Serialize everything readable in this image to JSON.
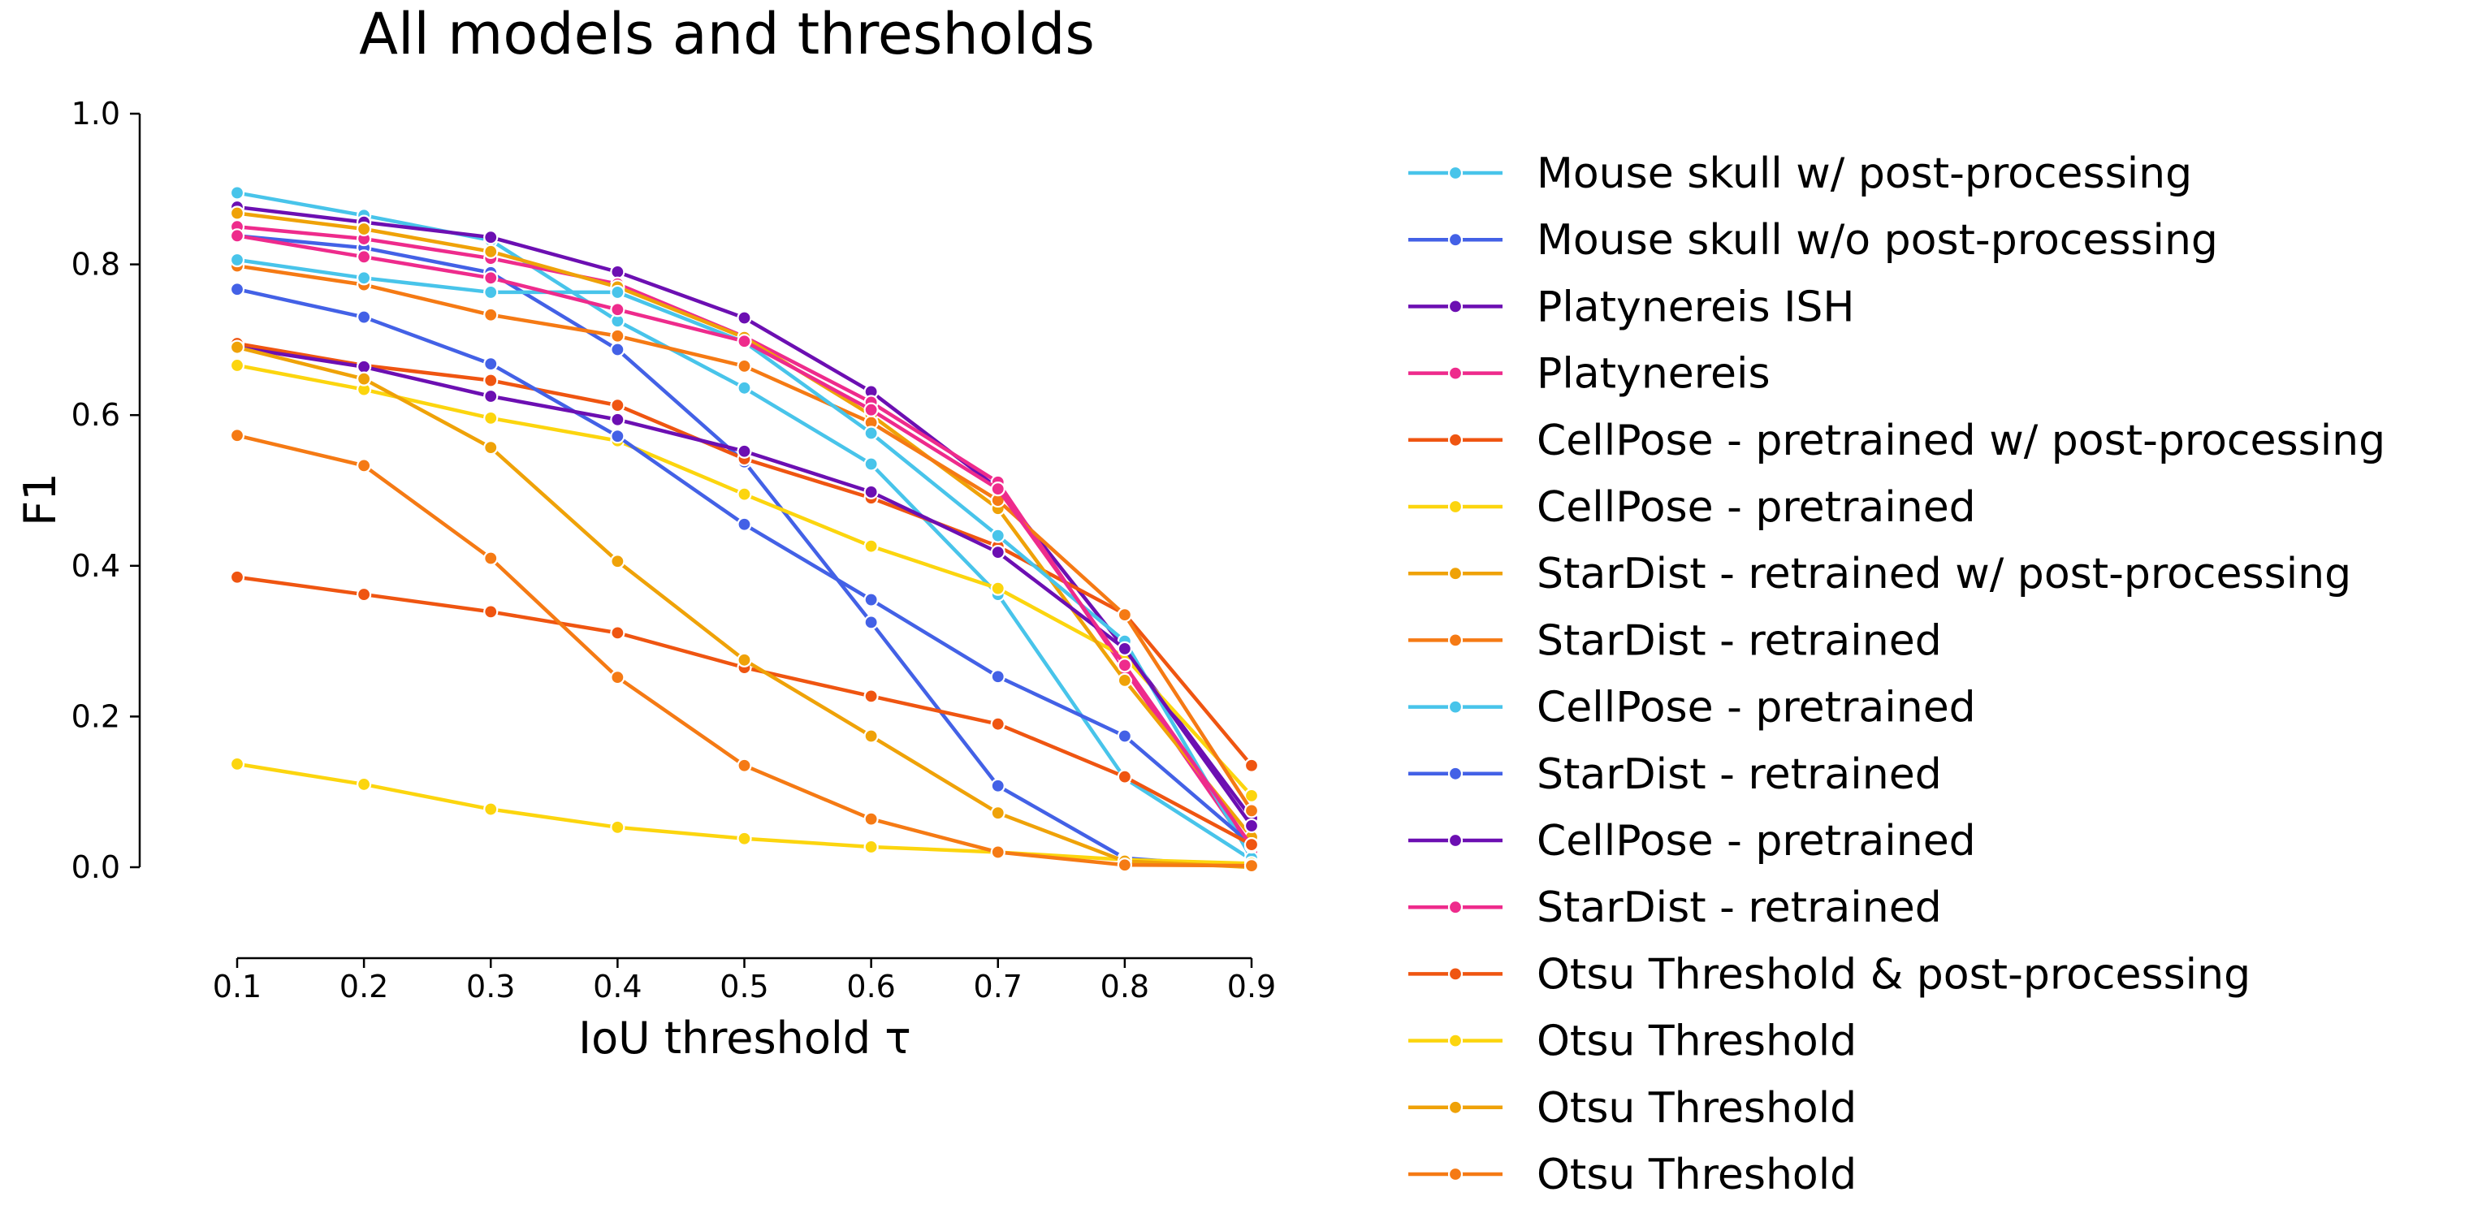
{
  "chart_data": {
    "type": "line",
    "title": "All models and thresholds",
    "xlabel": "IoU threshold τ",
    "ylabel": "F1",
    "x": [
      0.1,
      0.2,
      0.3,
      0.4,
      0.5,
      0.6,
      0.7,
      0.8,
      0.9
    ],
    "x_tick_labels": [
      "0.1",
      "0.2",
      "0.3",
      "0.4",
      "0.5",
      "0.6",
      "0.7",
      "0.8",
      "0.9"
    ],
    "y_ticks": [
      0.0,
      0.2,
      0.4,
      0.6,
      0.8,
      1.0
    ],
    "y_tick_labels": [
      "0.0",
      "0.2",
      "0.4",
      "0.6",
      "0.8",
      "1.0"
    ],
    "xlim": [
      0.1,
      0.9
    ],
    "ylim": [
      -0.12,
      1.0
    ],
    "grid": false,
    "legend_position": "right",
    "series": [
      {
        "name": "Mouse skull w/ post-processing",
        "color": "#48c4ea",
        "values": [
          0.895,
          0.865,
          0.832,
          0.725,
          0.636,
          0.535,
          0.362,
          0.118,
          0.01
        ]
      },
      {
        "name": "Mouse skull w/o post-processing",
        "color": "#4361e6",
        "values": [
          0.838,
          0.822,
          0.789,
          0.687,
          0.538,
          0.325,
          0.108,
          0.012,
          0.0
        ]
      },
      {
        "name": "Platynereis ISH",
        "color": "#6c0fb2",
        "values": [
          0.876,
          0.856,
          0.836,
          0.79,
          0.729,
          0.631,
          0.503,
          0.29,
          0.065
        ]
      },
      {
        "name": "Platynereis",
        "color": "#ee2b8c",
        "values": [
          0.85,
          0.834,
          0.808,
          0.774,
          0.704,
          0.617,
          0.511,
          0.262,
          0.02
        ]
      },
      {
        "name": "CellPose - pretrained w/ post-processing",
        "color": "#ef5511",
        "values": [
          0.695,
          0.666,
          0.646,
          0.613,
          0.542,
          0.49,
          0.426,
          0.336,
          0.135
        ]
      },
      {
        "name": "CellPose - pretrained",
        "color": "#fcd50e",
        "values": [
          0.666,
          0.634,
          0.596,
          0.566,
          0.495,
          0.426,
          0.37,
          0.279,
          0.095
        ]
      },
      {
        "name": "StarDist - retrained w/ post-processing",
        "color": "#efa208",
        "values": [
          0.868,
          0.847,
          0.817,
          0.77,
          0.703,
          0.6,
          0.476,
          0.248,
          0.04
        ]
      },
      {
        "name": "StarDist - retrained",
        "color": "#f57a14",
        "values": [
          0.798,
          0.773,
          0.733,
          0.705,
          0.665,
          0.59,
          0.487,
          0.335,
          0.075
        ]
      },
      {
        "name": "CellPose - pretrained",
        "color": "#48c4ea",
        "values": [
          0.806,
          0.782,
          0.763,
          0.763,
          0.697,
          0.576,
          0.44,
          0.3,
          0.012
        ]
      },
      {
        "name": "StarDist - retrained",
        "color": "#4361e6",
        "values": [
          0.767,
          0.73,
          0.668,
          0.572,
          0.455,
          0.355,
          0.253,
          0.174,
          0.03
        ]
      },
      {
        "name": "CellPose - pretrained",
        "color": "#6c0fb2",
        "values": [
          0.69,
          0.664,
          0.625,
          0.594,
          0.552,
          0.498,
          0.418,
          0.29,
          0.055
        ]
      },
      {
        "name": "StarDist - retrained",
        "color": "#ee2b8c",
        "values": [
          0.838,
          0.81,
          0.782,
          0.74,
          0.698,
          0.607,
          0.502,
          0.268,
          0.028
        ]
      },
      {
        "name": "Otsu Threshold & post-processing",
        "color": "#ef5511",
        "values": [
          0.385,
          0.362,
          0.339,
          0.311,
          0.265,
          0.227,
          0.19,
          0.12,
          0.03
        ]
      },
      {
        "name": "Otsu Threshold",
        "color": "#fcd50e",
        "values": [
          0.137,
          0.11,
          0.077,
          0.053,
          0.038,
          0.027,
          0.02,
          0.01,
          0.005
        ]
      },
      {
        "name": "Otsu Threshold",
        "color": "#efa208",
        "values": [
          0.69,
          0.648,
          0.557,
          0.406,
          0.275,
          0.174,
          0.072,
          0.008,
          0.0
        ]
      },
      {
        "name": "Otsu Threshold",
        "color": "#f57a14",
        "values": [
          0.573,
          0.533,
          0.41,
          0.252,
          0.135,
          0.064,
          0.02,
          0.003,
          0.002
        ]
      }
    ]
  }
}
